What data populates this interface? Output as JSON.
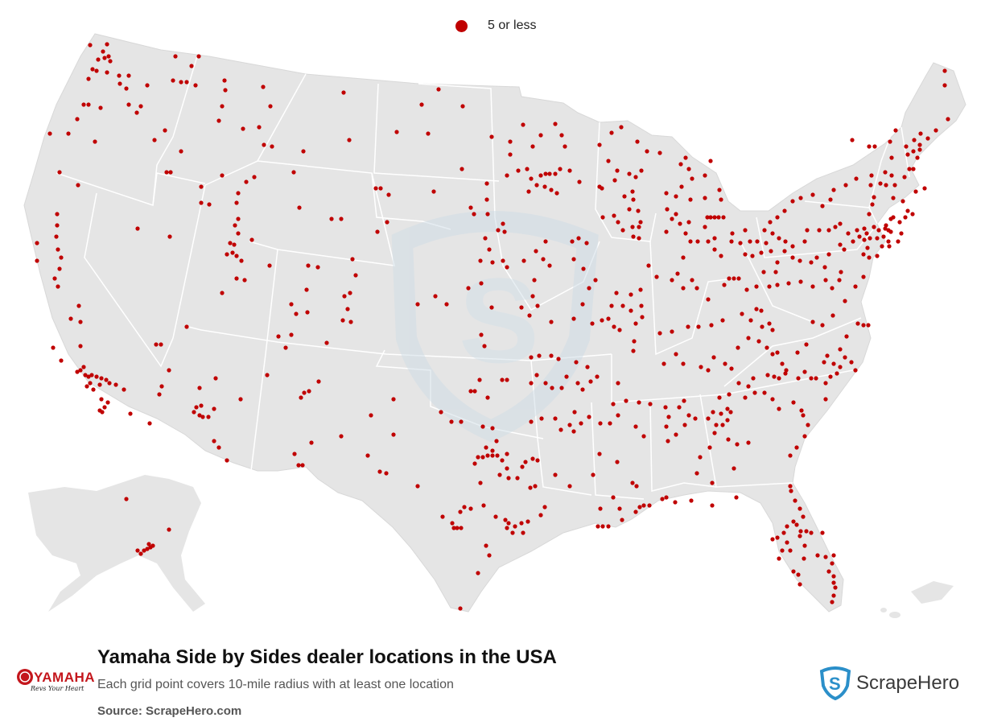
{
  "legend": {
    "label": "5 or less",
    "color": "#c00000"
  },
  "map": {
    "region": "Contiguous USA, Alaska, Hawaii",
    "land_color": "#e5e5e5",
    "border_color": "#ffffff",
    "marker_color": "#c00000",
    "watermark": "ScrapeHero shield"
  },
  "footer": {
    "title": "Yamaha Side by Sides dealer locations in the USA",
    "subtitle": "Each grid point covers 10-mile radius with at least one location",
    "source": "Source: ScrapeHero.com"
  },
  "brand": {
    "name": "YAMAHA",
    "tagline": "Revs Your Heart"
  },
  "publisher": {
    "name": "ScrapeHero",
    "icon": "shield-s-icon"
  }
}
